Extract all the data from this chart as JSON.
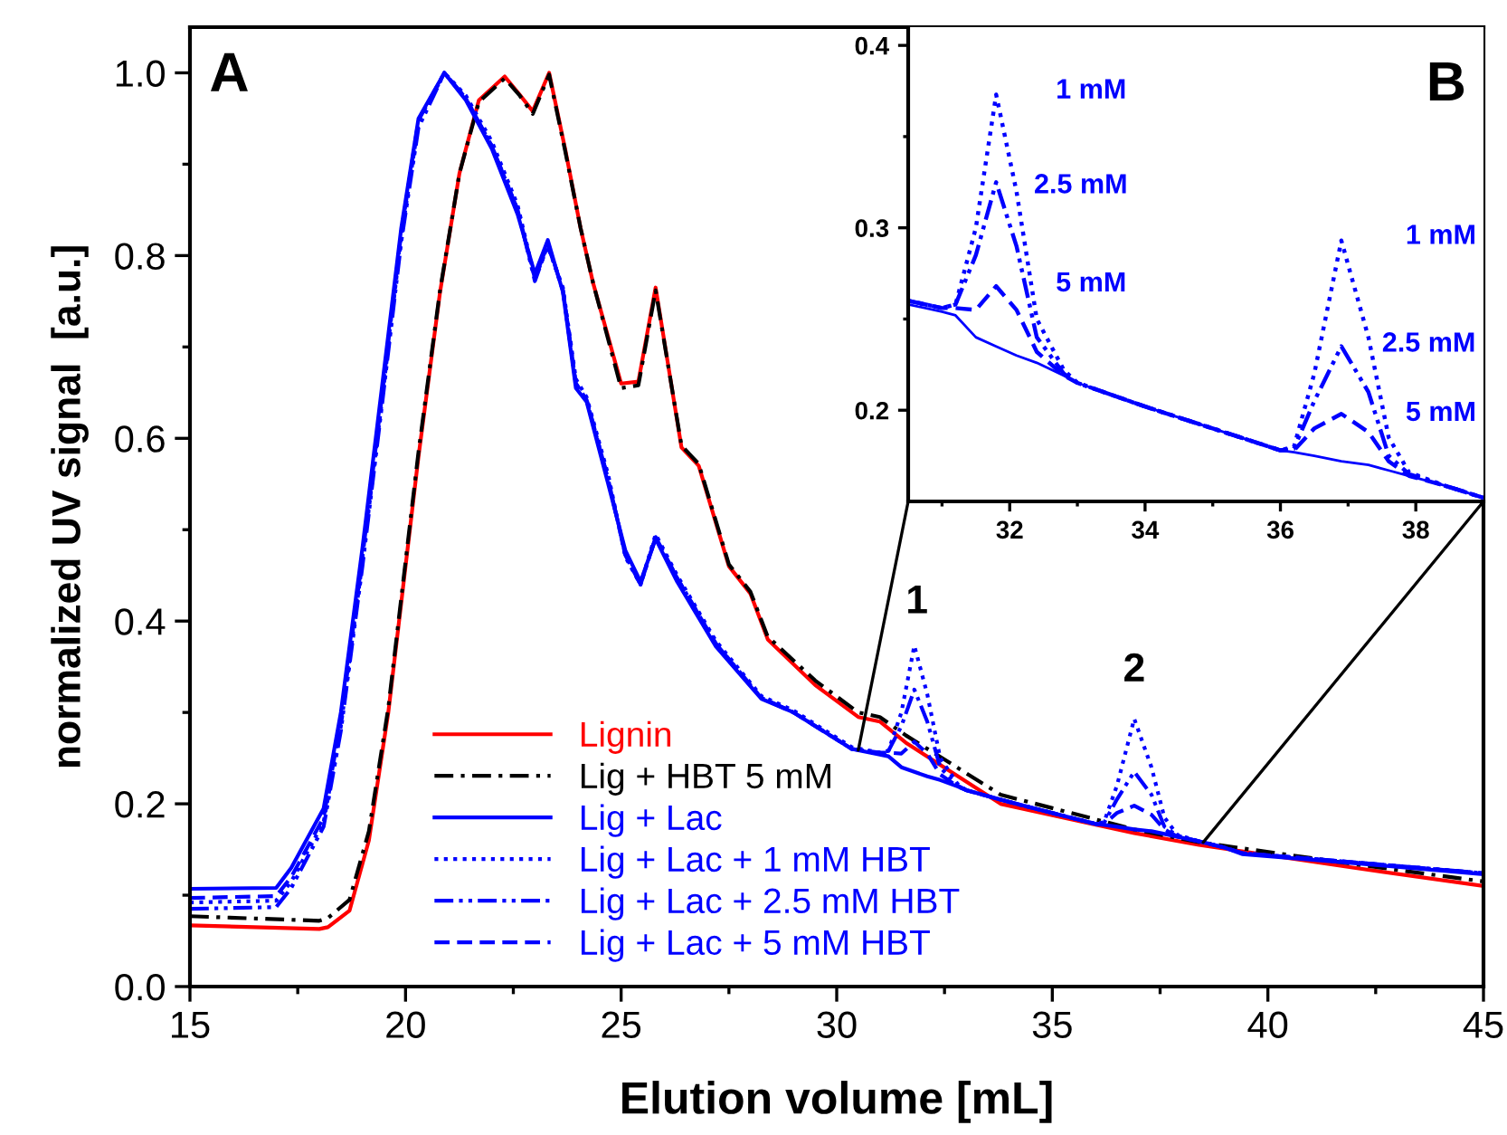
{
  "chart_data": [
    {
      "type": "line",
      "xlabel": "Elution volume [mL]",
      "ylabel": "normalized UV signal  [a.u.]",
      "xlim": [
        15,
        45
      ],
      "ylim": [
        0,
        1.05
      ],
      "xticks": [
        15,
        {
          "value": 17.5,
          "label": null
        },
        20,
        {
          "value": 22.5,
          "label": null
        },
        25,
        {
          "value": 27.5,
          "label": null
        },
        30,
        {
          "value": 32.5,
          "label": null
        },
        35,
        {
          "value": 37.5,
          "label": null
        },
        40,
        {
          "value": 42.5,
          "label": null
        },
        45
      ],
      "yticks": [
        {
          "value": 0,
          "label": "0.0"
        },
        {
          "value": 0.1,
          "label": null
        },
        0.2,
        {
          "value": 0.3,
          "label": null
        },
        0.4,
        {
          "value": 0.5,
          "label": null
        },
        0.6,
        {
          "value": 0.7,
          "label": null
        },
        0.8,
        {
          "value": 0.9,
          "label": null
        },
        {
          "value": 1.0,
          "label": "1.0"
        }
      ],
      "grid": false,
      "legend": "bottom",
      "marker": "none",
      "annotations": [
        "A",
        "1",
        "2"
      ],
      "series": [
        {
          "name": "Lignin",
          "color": "#ff0000",
          "line_style": "solid",
          "x": [
            15,
            18,
            18.2,
            18.7,
            19.15,
            19.6,
            19.95,
            20.3,
            20.8,
            21.25,
            21.7,
            22.3,
            22.65,
            22.95,
            23.33,
            23.7,
            24.06,
            24.35,
            25.0,
            25.4,
            25.8,
            26.4,
            26.8,
            27.5,
            28.0,
            28.4,
            29.5,
            30.5,
            31.0,
            31.6,
            33.8,
            36.9,
            38.4,
            42,
            45
          ],
          "values": [
            0.067,
            0.063,
            0.065,
            0.083,
            0.16,
            0.3,
            0.44,
            0.58,
            0.76,
            0.89,
            0.97,
            0.996,
            0.976,
            0.958,
            1.0,
            0.917,
            0.83,
            0.77,
            0.66,
            0.662,
            0.765,
            0.59,
            0.57,
            0.46,
            0.43,
            0.38,
            0.33,
            0.295,
            0.29,
            0.267,
            0.2,
            0.168,
            0.155,
            0.13,
            0.11
          ]
        },
        {
          "name": "Lig + HBT 5 mM",
          "color": "#000000",
          "line_style": "dashdot",
          "x": [
            15,
            18,
            18.2,
            18.7,
            19.15,
            19.6,
            19.95,
            20.3,
            20.8,
            21.25,
            21.7,
            22.3,
            22.65,
            22.95,
            23.33,
            23.7,
            24.06,
            24.35,
            25.0,
            25.4,
            25.8,
            26.4,
            26.8,
            27.5,
            28.0,
            28.4,
            29.5,
            30.5,
            31.0,
            31.6,
            33.8,
            36.9,
            38.4,
            42,
            45
          ],
          "values": [
            0.077,
            0.072,
            0.075,
            0.095,
            0.17,
            0.305,
            0.445,
            0.585,
            0.762,
            0.89,
            0.968,
            0.994,
            0.975,
            0.955,
            0.998,
            0.915,
            0.83,
            0.77,
            0.655,
            0.658,
            0.762,
            0.592,
            0.572,
            0.462,
            0.432,
            0.383,
            0.335,
            0.3,
            0.295,
            0.275,
            0.21,
            0.172,
            0.158,
            0.134,
            0.115
          ]
        },
        {
          "name": "Lig + Lac",
          "color": "#0000ff",
          "line_style": "solid",
          "x": [
            15,
            17,
            17.35,
            18.1,
            18.5,
            19,
            19.45,
            19.9,
            20.3,
            20.9,
            21.4,
            22,
            22.6,
            23,
            23.3,
            23.65,
            23.95,
            24.2,
            24.7,
            25.1,
            25.45,
            25.8,
            26.3,
            27.2,
            28.25,
            29,
            30.35,
            31,
            31.2,
            31.5,
            31.8,
            32.1,
            32.4,
            32.8,
            33,
            34,
            35,
            36,
            36.2,
            36.5,
            36.9,
            37.3,
            37.6,
            37.9,
            38.4,
            39,
            39.4,
            42,
            45
          ],
          "values": [
            0.107,
            0.108,
            0.13,
            0.195,
            0.3,
            0.48,
            0.655,
            0.83,
            0.95,
            1.0,
            0.97,
            0.917,
            0.845,
            0.78,
            0.817,
            0.76,
            0.655,
            0.64,
            0.55,
            0.477,
            0.443,
            0.49,
            0.443,
            0.372,
            0.315,
            0.3,
            0.26,
            0.254,
            0.252,
            0.24,
            0.235,
            0.23,
            0.226,
            0.219,
            0.215,
            0.202,
            0.19,
            0.178,
            0.177,
            0.175,
            0.172,
            0.17,
            0.167,
            0.164,
            0.159,
            0.152,
            0.145,
            0.135,
            0.123
          ]
        },
        {
          "name": "Lig + Lac + 1 mM HBT",
          "color": "#0000ff",
          "line_style": "dotted",
          "x": [
            15,
            17,
            17.35,
            18.1,
            18.5,
            19,
            19.45,
            19.9,
            20.3,
            20.9,
            21.4,
            22,
            22.6,
            23,
            23.3,
            23.65,
            23.95,
            24.2,
            24.7,
            25.1,
            25.45,
            25.8,
            26.3,
            27.2,
            28.25,
            29,
            30.35,
            31,
            31.2,
            31.5,
            31.8,
            32.1,
            32.4,
            32.8,
            33,
            34,
            35,
            36,
            36.2,
            36.5,
            36.9,
            37.3,
            37.6,
            37.9,
            38.4,
            39,
            39.4,
            42,
            45
          ],
          "values": [
            0.092,
            0.094,
            0.115,
            0.18,
            0.285,
            0.465,
            0.64,
            0.82,
            0.945,
            1.0,
            0.975,
            0.925,
            0.855,
            0.775,
            0.81,
            0.765,
            0.665,
            0.645,
            0.56,
            0.47,
            0.44,
            0.495,
            0.45,
            0.378,
            0.318,
            0.302,
            0.262,
            0.256,
            0.258,
            0.3,
            0.373,
            0.32,
            0.25,
            0.222,
            0.215,
            0.202,
            0.19,
            0.178,
            0.18,
            0.22,
            0.293,
            0.24,
            0.185,
            0.166,
            0.159,
            0.152,
            0.146,
            0.136,
            0.124
          ]
        },
        {
          "name": "Lig + Lac + 2.5 mM HBT",
          "color": "#0000ff",
          "line_style": "dashdotdot",
          "x": [
            15,
            17,
            17.35,
            18.1,
            18.5,
            19,
            19.45,
            19.9,
            20.3,
            20.9,
            21.4,
            22,
            22.6,
            23,
            23.3,
            23.65,
            23.95,
            24.2,
            24.7,
            25.1,
            25.45,
            25.8,
            26.3,
            27.2,
            28.25,
            29,
            30.35,
            31,
            31.2,
            31.5,
            31.8,
            32.1,
            32.4,
            32.8,
            33,
            34,
            35,
            36,
            36.2,
            36.5,
            36.9,
            37.3,
            37.6,
            37.9,
            38.4,
            39,
            39.4,
            42,
            45
          ],
          "values": [
            0.085,
            0.087,
            0.108,
            0.175,
            0.28,
            0.46,
            0.635,
            0.815,
            0.94,
            1.0,
            0.972,
            0.92,
            0.85,
            0.772,
            0.812,
            0.762,
            0.66,
            0.642,
            0.555,
            0.472,
            0.44,
            0.492,
            0.447,
            0.375,
            0.316,
            0.3,
            0.26,
            0.256,
            0.258,
            0.285,
            0.325,
            0.29,
            0.24,
            0.22,
            0.215,
            0.202,
            0.19,
            0.178,
            0.179,
            0.205,
            0.235,
            0.21,
            0.175,
            0.165,
            0.159,
            0.152,
            0.146,
            0.136,
            0.124
          ]
        },
        {
          "name": "Lig + Lac + 5 mM HBT",
          "color": "#0000ff",
          "line_style": "dashed",
          "x": [
            15,
            17,
            17.35,
            18.1,
            18.5,
            19,
            19.45,
            19.9,
            20.3,
            20.9,
            21.4,
            22,
            22.6,
            23,
            23.3,
            23.65,
            23.95,
            24.2,
            24.7,
            25.1,
            25.45,
            25.8,
            26.3,
            27.2,
            28.25,
            29,
            30.35,
            31,
            31.2,
            31.5,
            31.8,
            32.1,
            32.4,
            32.8,
            33,
            34,
            35,
            36,
            36.2,
            36.5,
            36.9,
            37.3,
            37.6,
            37.9,
            38.4,
            39,
            39.4,
            42,
            45
          ],
          "values": [
            0.097,
            0.099,
            0.12,
            0.185,
            0.29,
            0.47,
            0.645,
            0.825,
            0.948,
            1.0,
            0.972,
            0.92,
            0.85,
            0.775,
            0.813,
            0.762,
            0.66,
            0.642,
            0.555,
            0.472,
            0.44,
            0.492,
            0.447,
            0.375,
            0.316,
            0.3,
            0.26,
            0.256,
            0.256,
            0.255,
            0.268,
            0.255,
            0.232,
            0.219,
            0.215,
            0.202,
            0.19,
            0.178,
            0.178,
            0.19,
            0.198,
            0.188,
            0.172,
            0.164,
            0.159,
            0.152,
            0.146,
            0.136,
            0.124
          ]
        }
      ]
    },
    {
      "type": "line",
      "xlim": [
        30.5,
        39
      ],
      "ylim": [
        0.15,
        0.41
      ],
      "xticks": [
        {
          "value": 31,
          "label": null
        },
        32,
        {
          "value": 33,
          "label": null
        },
        34,
        {
          "value": 35,
          "label": null
        },
        36,
        {
          "value": 37,
          "label": null
        },
        38
      ],
      "yticks": [
        0.2,
        {
          "value": 0.25,
          "label": null
        },
        0.3,
        {
          "value": 0.35,
          "label": null
        },
        0.4
      ],
      "grid": false,
      "marker": "none",
      "annotations": [
        "B",
        "1 mM",
        "2.5 mM",
        "5 mM",
        "1 mM",
        "2.5 mM",
        "5 mM"
      ],
      "series": [
        {
          "color": "#0000ff",
          "line_style": "solid",
          "x": [
            30.5,
            31,
            31.2,
            31.5,
            31.8,
            32.1,
            32.4,
            32.8,
            33,
            34,
            35,
            36,
            36.2,
            36.5,
            36.9,
            37.3,
            37.6,
            37.9,
            38.4,
            39
          ],
          "values": [
            0.258,
            0.254,
            0.252,
            0.24,
            0.235,
            0.23,
            0.226,
            0.219,
            0.215,
            0.202,
            0.19,
            0.178,
            0.177,
            0.175,
            0.172,
            0.17,
            0.167,
            0.164,
            0.159,
            0.152
          ]
        },
        {
          "color": "#0000ff",
          "line_style": "dotted",
          "x": [
            30.5,
            31,
            31.2,
            31.5,
            31.8,
            32.1,
            32.4,
            32.8,
            33,
            34,
            35,
            36,
            36.2,
            36.5,
            36.9,
            37.3,
            37.6,
            37.9,
            38.4,
            39
          ],
          "values": [
            0.26,
            0.256,
            0.258,
            0.3,
            0.373,
            0.32,
            0.25,
            0.222,
            0.215,
            0.202,
            0.19,
            0.178,
            0.18,
            0.22,
            0.293,
            0.24,
            0.185,
            0.166,
            0.159,
            0.152
          ]
        },
        {
          "color": "#0000ff",
          "line_style": "dashdotdot",
          "x": [
            30.5,
            31,
            31.2,
            31.5,
            31.8,
            32.1,
            32.4,
            32.8,
            33,
            34,
            35,
            36,
            36.2,
            36.5,
            36.9,
            37.3,
            37.6,
            37.9,
            38.4,
            39
          ],
          "values": [
            0.26,
            0.256,
            0.258,
            0.285,
            0.325,
            0.29,
            0.24,
            0.22,
            0.215,
            0.202,
            0.19,
            0.178,
            0.179,
            0.205,
            0.235,
            0.21,
            0.175,
            0.165,
            0.159,
            0.152
          ]
        },
        {
          "color": "#0000ff",
          "line_style": "dashed",
          "x": [
            30.5,
            31,
            31.2,
            31.5,
            31.8,
            32.1,
            32.4,
            32.8,
            33,
            34,
            35,
            36,
            36.2,
            36.5,
            36.9,
            37.3,
            37.6,
            37.9,
            38.4,
            39
          ],
          "values": [
            0.26,
            0.256,
            0.256,
            0.255,
            0.268,
            0.255,
            0.232,
            0.219,
            0.215,
            0.202,
            0.19,
            0.178,
            0.178,
            0.19,
            0.198,
            0.188,
            0.172,
            0.164,
            0.159,
            0.152
          ]
        }
      ]
    }
  ]
}
